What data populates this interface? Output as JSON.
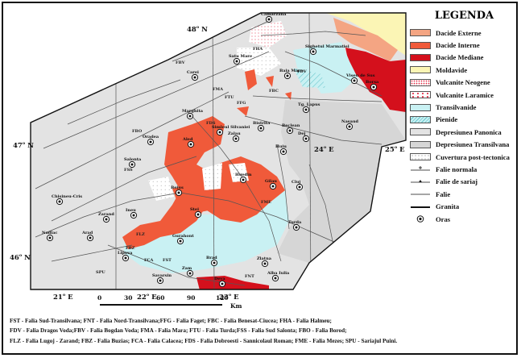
{
  "legend": {
    "title": "LEGENDA",
    "items": [
      {
        "label": "Dacide Externe",
        "color": "#f4a583",
        "kind": "fill"
      },
      {
        "label": "Dacide Interne",
        "color": "#f05a3a",
        "kind": "fill"
      },
      {
        "label": "Dacide Mediane",
        "color": "#d4101c",
        "kind": "fill"
      },
      {
        "label": "Moldavide",
        "color": "#fbf5b5",
        "kind": "fill"
      },
      {
        "label": "Vulcanite Neogene",
        "color": "#ffffff",
        "kind": "dots-red"
      },
      {
        "label": "Vulcanite Laramice",
        "color": "#ffffff",
        "kind": "dots-red-sparse"
      },
      {
        "label": "Transilvanide",
        "color": "#c9f1f3",
        "kind": "fill"
      },
      {
        "label": "Pienide",
        "color": "#c9f1f3",
        "kind": "hatch"
      },
      {
        "label": "Depresiunea Panonica",
        "color": "#e3e3e3",
        "kind": "fill"
      },
      {
        "label": "Depresiunea Transilvana",
        "color": "#d6d6d6",
        "kind": "fill"
      },
      {
        "label": "Cuvertura post-tectonica",
        "color": "#ffffff",
        "kind": "dots-grey"
      },
      {
        "label": "Falie normala",
        "kind": "fault-normal"
      },
      {
        "label": "Falie de sariaj",
        "kind": "fault-thrust"
      },
      {
        "label": "Falie",
        "kind": "fault"
      },
      {
        "label": "Granita",
        "kind": "border"
      },
      {
        "label": "Oras",
        "kind": "town"
      }
    ]
  },
  "graticule": {
    "lat_48": "48",
    "lat_47": "47",
    "lat_46": "46",
    "lat_suffix": "N",
    "lon_21": "21",
    "lon_22": "22",
    "lon_23": "23",
    "lon_24": "24",
    "lon_25": "25",
    "lon_suffix": "E",
    "degree": "o"
  },
  "scale": {
    "ticks": [
      "0",
      "30",
      "60",
      "90",
      "120"
    ],
    "unit": "Km"
  },
  "towns": [
    "Camarzana",
    "Sighetul Marmatiei",
    "Satu Mare",
    "Carei",
    "Baia Mare",
    "Viseu de Sus",
    "Borsa",
    "Tg. Lapus",
    "Nasaud",
    "Marghita",
    "Simleul Silvaniei",
    "Dej",
    "Beclean",
    "Oradea",
    "Aled",
    "Zalau",
    "Bistrita",
    "Huiu",
    "Salonta",
    "Huedin",
    "Gilau",
    "Cluj",
    "Beius",
    "Chisineu-Cris",
    "Ineu",
    "Zarand",
    "Stei",
    "Turda",
    "Arad",
    "Nadlac",
    "Lipova",
    "Gurahont",
    "Brad",
    "Zlatna",
    "Alba Iulia",
    "Zam",
    "Savarsin",
    "Deva"
  ],
  "faults": [
    "FHA",
    "FDV",
    "FBV",
    "FMA",
    "FTU",
    "FSS",
    "FBO",
    "FLZ",
    "FBZ",
    "FCA",
    "FDS",
    "FME",
    "FST",
    "FNT",
    "FFG",
    "FBC",
    "SPU"
  ],
  "abbreviations": [
    "FST - Falia Sud-Transilvana; FNT - Falia Nord-Transilvana;FFG - Falia Faget; FBC - Falia Benesat-Ciucea; FHA - Falia Halmeu;",
    "FDV - Falia Dragos Voda;FBV - Falia Bogdan Voda; FMA - Falia Mara; FTU - Falia Turda;FSS - Falia Sud Salonta; FBO - Falia Borod;",
    "FLZ - Falia Lugoj - Zarand; FBZ - Falia Buzias; FCA - Falia Calacea; FDS - Falia Dobroesti - Sannicolaul Roman; FME - Falia Mezes; SPU - Sariajul Puini."
  ]
}
